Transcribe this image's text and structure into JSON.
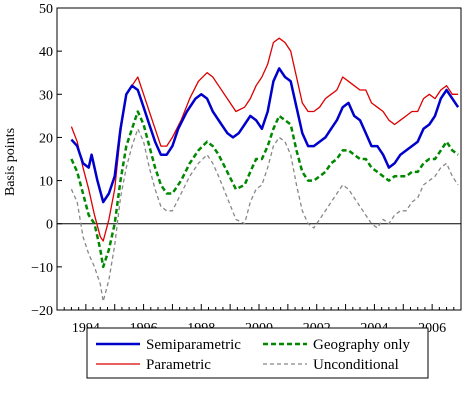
{
  "chart_data": {
    "type": "line",
    "title": "",
    "xlabel": "",
    "ylabel": "Basis points",
    "xlim": [
      1993.0,
      2007.0
    ],
    "ylim": [
      -20,
      50
    ],
    "x_ticks": [
      1994,
      1996,
      1998,
      2000,
      2002,
      2004,
      2006
    ],
    "y_ticks": [
      -20,
      -10,
      0,
      10,
      20,
      30,
      40,
      50
    ],
    "grid": false,
    "zero_line": true,
    "legend_position": "bottom",
    "series": [
      {
        "name": "Semiparametric",
        "color": "#0000cc",
        "style": "solid",
        "points": [
          [
            1993.5,
            19.5
          ],
          [
            1993.7,
            18
          ],
          [
            1993.9,
            14
          ],
          [
            1994.1,
            13
          ],
          [
            1994.2,
            16
          ],
          [
            1994.4,
            10
          ],
          [
            1994.6,
            5
          ],
          [
            1994.8,
            7
          ],
          [
            1995.0,
            11
          ],
          [
            1995.2,
            22
          ],
          [
            1995.4,
            30
          ],
          [
            1995.6,
            32
          ],
          [
            1995.8,
            31
          ],
          [
            1996.0,
            27
          ],
          [
            1996.2,
            23
          ],
          [
            1996.4,
            19
          ],
          [
            1996.6,
            16
          ],
          [
            1996.8,
            16
          ],
          [
            1997.0,
            18
          ],
          [
            1997.2,
            22
          ],
          [
            1997.5,
            26
          ],
          [
            1997.8,
            29
          ],
          [
            1998.0,
            30
          ],
          [
            1998.2,
            29
          ],
          [
            1998.4,
            26
          ],
          [
            1998.7,
            23
          ],
          [
            1998.9,
            21
          ],
          [
            1999.1,
            20
          ],
          [
            1999.3,
            21
          ],
          [
            1999.5,
            23
          ],
          [
            1999.7,
            25
          ],
          [
            1999.9,
            24
          ],
          [
            2000.1,
            22
          ],
          [
            2000.3,
            26
          ],
          [
            2000.5,
            33
          ],
          [
            2000.7,
            36
          ],
          [
            2000.9,
            34
          ],
          [
            2001.1,
            33
          ],
          [
            2001.3,
            27
          ],
          [
            2001.5,
            21
          ],
          [
            2001.7,
            18
          ],
          [
            2001.9,
            18
          ],
          [
            2002.1,
            19
          ],
          [
            2002.3,
            20
          ],
          [
            2002.5,
            22
          ],
          [
            2002.7,
            24
          ],
          [
            2002.9,
            27
          ],
          [
            2003.1,
            28
          ],
          [
            2003.3,
            25
          ],
          [
            2003.5,
            24
          ],
          [
            2003.7,
            21
          ],
          [
            2003.9,
            18
          ],
          [
            2004.1,
            18
          ],
          [
            2004.3,
            16
          ],
          [
            2004.5,
            13
          ],
          [
            2004.7,
            14
          ],
          [
            2004.9,
            16
          ],
          [
            2005.1,
            17
          ],
          [
            2005.3,
            18
          ],
          [
            2005.5,
            19
          ],
          [
            2005.7,
            22
          ],
          [
            2005.9,
            23
          ],
          [
            2006.1,
            25
          ],
          [
            2006.3,
            29
          ],
          [
            2006.5,
            31
          ],
          [
            2006.7,
            29
          ],
          [
            2006.9,
            27
          ]
        ]
      },
      {
        "name": "Parametric",
        "color": "#dd0000",
        "style": "solid",
        "points": [
          [
            1993.5,
            22.5
          ],
          [
            1993.7,
            19
          ],
          [
            1993.9,
            13
          ],
          [
            1994.1,
            8
          ],
          [
            1994.3,
            2
          ],
          [
            1994.5,
            -3
          ],
          [
            1994.6,
            -4
          ],
          [
            1994.8,
            1
          ],
          [
            1995.0,
            8
          ],
          [
            1995.2,
            21
          ],
          [
            1995.4,
            30
          ],
          [
            1995.6,
            32
          ],
          [
            1995.8,
            34
          ],
          [
            1996.0,
            30
          ],
          [
            1996.2,
            26
          ],
          [
            1996.4,
            22
          ],
          [
            1996.6,
            18
          ],
          [
            1996.8,
            18
          ],
          [
            1997.0,
            20
          ],
          [
            1997.3,
            24
          ],
          [
            1997.6,
            29
          ],
          [
            1997.9,
            33
          ],
          [
            1998.2,
            35
          ],
          [
            1998.4,
            34
          ],
          [
            1998.6,
            32
          ],
          [
            1998.9,
            29
          ],
          [
            1999.2,
            26
          ],
          [
            1999.5,
            27
          ],
          [
            1999.7,
            29
          ],
          [
            1999.9,
            32
          ],
          [
            2000.1,
            34
          ],
          [
            2000.3,
            37
          ],
          [
            2000.5,
            42
          ],
          [
            2000.7,
            43
          ],
          [
            2000.9,
            42
          ],
          [
            2001.1,
            40
          ],
          [
            2001.3,
            34
          ],
          [
            2001.5,
            28
          ],
          [
            2001.7,
            26
          ],
          [
            2001.9,
            26
          ],
          [
            2002.1,
            27
          ],
          [
            2002.3,
            29
          ],
          [
            2002.5,
            30
          ],
          [
            2002.7,
            31
          ],
          [
            2002.9,
            34
          ],
          [
            2003.1,
            33
          ],
          [
            2003.3,
            32
          ],
          [
            2003.5,
            31
          ],
          [
            2003.7,
            31
          ],
          [
            2003.9,
            28
          ],
          [
            2004.1,
            27
          ],
          [
            2004.3,
            26
          ],
          [
            2004.5,
            24
          ],
          [
            2004.7,
            23
          ],
          [
            2004.9,
            24
          ],
          [
            2005.1,
            25
          ],
          [
            2005.3,
            26
          ],
          [
            2005.5,
            26
          ],
          [
            2005.7,
            29
          ],
          [
            2005.9,
            30
          ],
          [
            2006.1,
            29
          ],
          [
            2006.3,
            31
          ],
          [
            2006.5,
            32
          ],
          [
            2006.7,
            30
          ],
          [
            2006.9,
            30
          ]
        ]
      },
      {
        "name": "Geography only",
        "color": "#008800",
        "style": "dashed",
        "points": [
          [
            1993.5,
            15
          ],
          [
            1993.7,
            12
          ],
          [
            1993.9,
            7
          ],
          [
            1994.1,
            2
          ],
          [
            1994.3,
            0
          ],
          [
            1994.5,
            -6
          ],
          [
            1994.6,
            -10
          ],
          [
            1994.8,
            -6
          ],
          [
            1995.0,
            0
          ],
          [
            1995.2,
            10
          ],
          [
            1995.4,
            18
          ],
          [
            1995.6,
            22
          ],
          [
            1995.8,
            26
          ],
          [
            1996.0,
            23
          ],
          [
            1996.2,
            18
          ],
          [
            1996.4,
            13
          ],
          [
            1996.6,
            9
          ],
          [
            1996.8,
            7
          ],
          [
            1997.0,
            7
          ],
          [
            1997.3,
            10
          ],
          [
            1997.6,
            14
          ],
          [
            1997.9,
            17
          ],
          [
            1998.2,
            19
          ],
          [
            1998.4,
            18
          ],
          [
            1998.6,
            16
          ],
          [
            1998.9,
            12
          ],
          [
            1999.2,
            8
          ],
          [
            1999.5,
            9
          ],
          [
            1999.7,
            12
          ],
          [
            1999.9,
            15
          ],
          [
            2000.1,
            15
          ],
          [
            2000.3,
            18
          ],
          [
            2000.5,
            22
          ],
          [
            2000.7,
            25
          ],
          [
            2000.9,
            24
          ],
          [
            2001.1,
            23
          ],
          [
            2001.3,
            17
          ],
          [
            2001.5,
            12
          ],
          [
            2001.7,
            10
          ],
          [
            2001.9,
            10
          ],
          [
            2002.1,
            11
          ],
          [
            2002.3,
            12
          ],
          [
            2002.5,
            14
          ],
          [
            2002.7,
            15
          ],
          [
            2002.9,
            17
          ],
          [
            2003.1,
            17
          ],
          [
            2003.3,
            16
          ],
          [
            2003.5,
            15
          ],
          [
            2003.7,
            15
          ],
          [
            2003.9,
            13
          ],
          [
            2004.1,
            12
          ],
          [
            2004.3,
            11
          ],
          [
            2004.5,
            10
          ],
          [
            2004.7,
            11
          ],
          [
            2004.9,
            11
          ],
          [
            2005.1,
            11
          ],
          [
            2005.3,
            12
          ],
          [
            2005.5,
            12
          ],
          [
            2005.7,
            14
          ],
          [
            2005.9,
            15
          ],
          [
            2006.1,
            15
          ],
          [
            2006.3,
            17
          ],
          [
            2006.5,
            19
          ],
          [
            2006.7,
            17
          ],
          [
            2006.9,
            16
          ]
        ]
      },
      {
        "name": "Unconditional",
        "color": "#888888",
        "style": "dashed",
        "points": [
          [
            1993.5,
            8
          ],
          [
            1993.7,
            5
          ],
          [
            1993.9,
            -3
          ],
          [
            1994.1,
            -7
          ],
          [
            1994.3,
            -10
          ],
          [
            1994.5,
            -14
          ],
          [
            1994.6,
            -18
          ],
          [
            1994.8,
            -13
          ],
          [
            1995.0,
            -5
          ],
          [
            1995.2,
            6
          ],
          [
            1995.4,
            13
          ],
          [
            1995.6,
            18
          ],
          [
            1995.8,
            22
          ],
          [
            1996.0,
            19
          ],
          [
            1996.2,
            13
          ],
          [
            1996.4,
            8
          ],
          [
            1996.6,
            4
          ],
          [
            1996.8,
            3
          ],
          [
            1997.0,
            3
          ],
          [
            1997.3,
            7
          ],
          [
            1997.6,
            11
          ],
          [
            1997.9,
            14
          ],
          [
            1998.2,
            16
          ],
          [
            1998.4,
            14
          ],
          [
            1998.6,
            11
          ],
          [
            1998.9,
            6
          ],
          [
            1999.2,
            1
          ],
          [
            1999.5,
            0
          ],
          [
            1999.7,
            5
          ],
          [
            1999.9,
            8
          ],
          [
            2000.1,
            9
          ],
          [
            2000.3,
            13
          ],
          [
            2000.5,
            18
          ],
          [
            2000.7,
            20
          ],
          [
            2000.9,
            19
          ],
          [
            2001.1,
            16
          ],
          [
            2001.3,
            9
          ],
          [
            2001.5,
            3
          ],
          [
            2001.7,
            0
          ],
          [
            2001.9,
            -1
          ],
          [
            2002.1,
            1
          ],
          [
            2002.3,
            3
          ],
          [
            2002.5,
            5
          ],
          [
            2002.7,
            7
          ],
          [
            2002.9,
            9
          ],
          [
            2003.1,
            8
          ],
          [
            2003.3,
            6
          ],
          [
            2003.5,
            4
          ],
          [
            2003.7,
            2
          ],
          [
            2003.9,
            0
          ],
          [
            2004.1,
            -1
          ],
          [
            2004.3,
            1
          ],
          [
            2004.5,
            0
          ],
          [
            2004.7,
            2
          ],
          [
            2004.9,
            3
          ],
          [
            2005.1,
            3
          ],
          [
            2005.3,
            5
          ],
          [
            2005.5,
            6
          ],
          [
            2005.7,
            9
          ],
          [
            2005.9,
            10
          ],
          [
            2006.1,
            11
          ],
          [
            2006.3,
            13
          ],
          [
            2006.5,
            14
          ],
          [
            2006.7,
            11
          ],
          [
            2006.9,
            9
          ]
        ]
      }
    ]
  }
}
